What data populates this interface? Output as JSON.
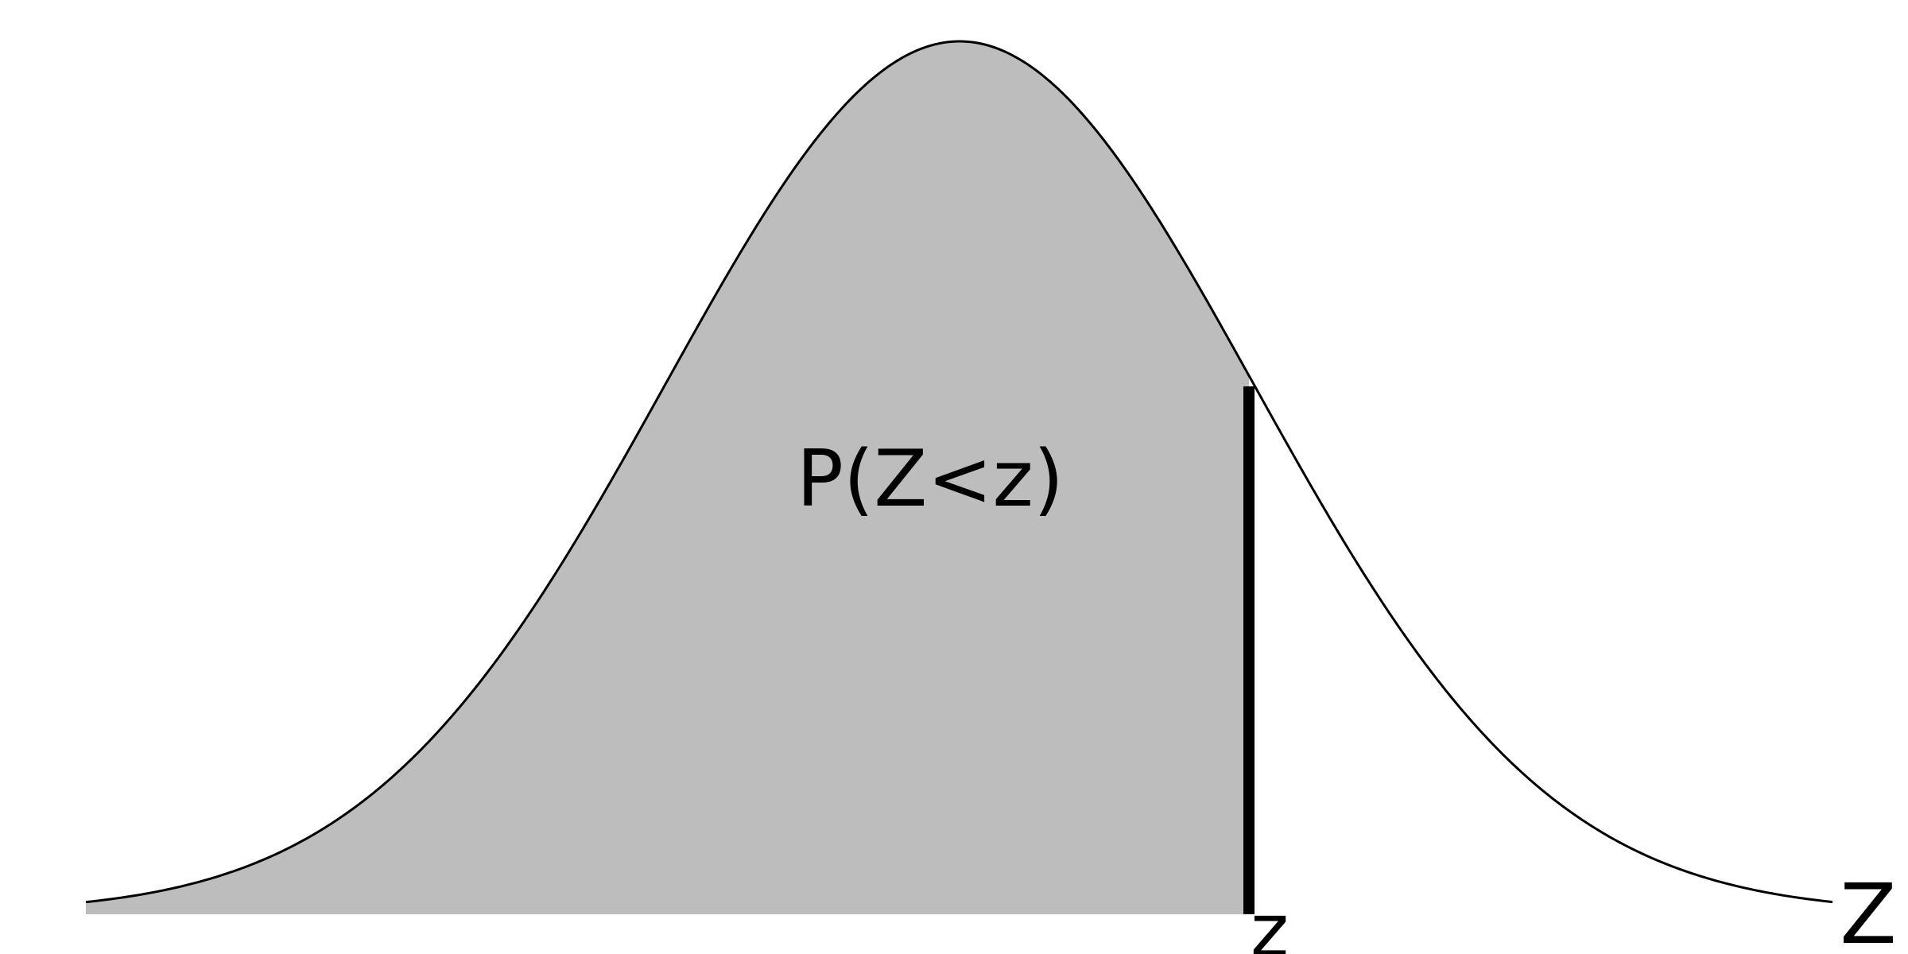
{
  "labels": {
    "area": "P(Z<z)",
    "cutoff": "z",
    "axis": "Z"
  },
  "colors": {
    "shaded_area": "#bdbdbd",
    "curve": "#000000",
    "cutoff_line": "#000000",
    "text": "#000000",
    "background": "#ffffff"
  }
}
